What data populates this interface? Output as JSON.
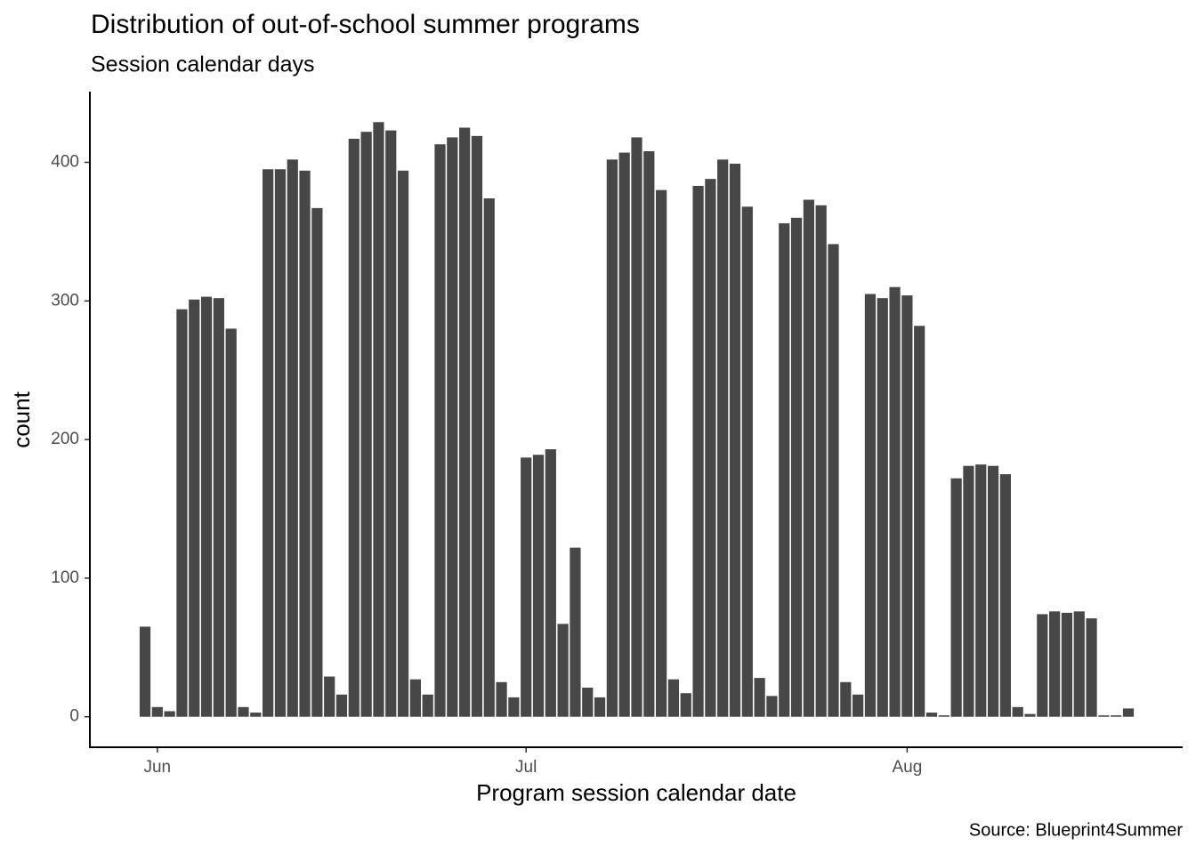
{
  "chart_data": {
    "type": "bar",
    "title": "Distribution of out-of-school summer programs",
    "subtitle": "Session calendar days",
    "caption": "Source: Blueprint4Summer",
    "xlabel": "Program session calendar date",
    "ylabel": "count",
    "categories": [
      null,
      "Jun",
      null,
      null,
      null,
      null,
      null,
      null,
      null,
      null,
      null,
      null,
      null,
      null,
      null,
      null,
      null,
      null,
      null,
      null,
      null,
      null,
      null,
      null,
      null,
      null,
      null,
      null,
      null,
      null,
      null,
      "Jul",
      null,
      null,
      null,
      null,
      null,
      null,
      null,
      null,
      null,
      null,
      null,
      null,
      null,
      null,
      null,
      null,
      null,
      null,
      null,
      null,
      null,
      null,
      null,
      null,
      null,
      null,
      null,
      null,
      null,
      null,
      "Aug",
      null,
      null,
      null,
      null,
      null,
      null,
      null,
      null,
      null,
      null,
      null,
      null,
      null,
      null,
      null,
      null,
      null,
      null
    ],
    "values": [
      65,
      7,
      4,
      294,
      301,
      303,
      302,
      280,
      7,
      3,
      395,
      395,
      402,
      394,
      367,
      29,
      16,
      417,
      422,
      429,
      423,
      394,
      27,
      16,
      413,
      418,
      425,
      419,
      374,
      25,
      14,
      187,
      189,
      193,
      67,
      122,
      21,
      14,
      402,
      407,
      418,
      408,
      380,
      27,
      17,
      383,
      388,
      402,
      399,
      368,
      28,
      15,
      356,
      360,
      373,
      369,
      341,
      25,
      16,
      305,
      302,
      310,
      304,
      282,
      3,
      1,
      172,
      181,
      182,
      181,
      175,
      7,
      2,
      74,
      76,
      75,
      76,
      71,
      1,
      1,
      6
    ],
    "color": "#474747",
    "ylim": [
      -22,
      451
    ],
    "yticks": [
      0,
      100,
      200,
      300,
      400
    ]
  }
}
